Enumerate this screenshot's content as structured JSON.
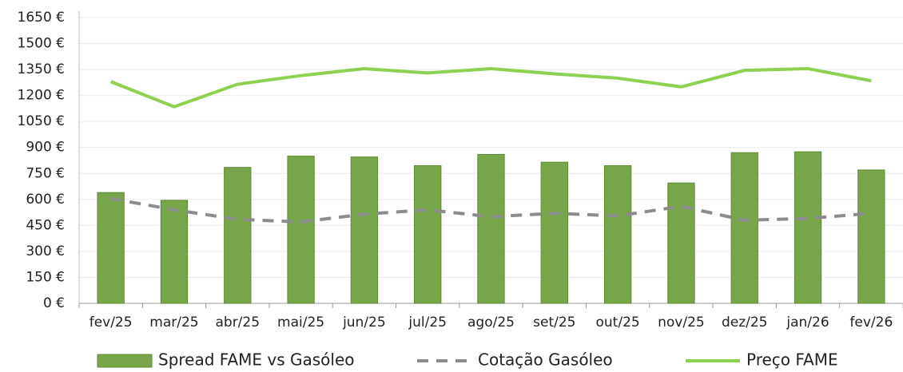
{
  "chart_data": {
    "type": "bar_line",
    "categories": [
      "fev/25",
      "mar/25",
      "abr/25",
      "mai/25",
      "jun/25",
      "jul/25",
      "ago/25",
      "set/25",
      "out/25",
      "nov/25",
      "dez/25",
      "jan/26",
      "fev/26"
    ],
    "series": [
      {
        "name": "Spread FAME vs Gasóleo",
        "type": "bar",
        "color": "#78a54a",
        "values": [
          640,
          595,
          785,
          850,
          845,
          795,
          860,
          815,
          795,
          695,
          870,
          875,
          770
        ]
      },
      {
        "name": "Cotação Gasóleo",
        "type": "line",
        "dashed": true,
        "color": "#8c8c8c",
        "values": [
          605,
          540,
          485,
          470,
          515,
          540,
          500,
          520,
          505,
          560,
          480,
          490,
          520
        ]
      },
      {
        "name": "Preço FAME",
        "type": "line",
        "dashed": false,
        "color": "#8ed04f",
        "values": [
          1280,
          1135,
          1265,
          1315,
          1355,
          1330,
          1355,
          1325,
          1300,
          1250,
          1345,
          1355,
          1285
        ]
      }
    ],
    "ylim": [
      0,
      1650
    ],
    "yticks": [
      {
        "value": 0,
        "label": "0 €"
      },
      {
        "value": 150,
        "label": "150 €"
      },
      {
        "value": 300,
        "label": "300 €"
      },
      {
        "value": 450,
        "label": "450 €"
      },
      {
        "value": 600,
        "label": "600 €"
      },
      {
        "value": 750,
        "label": "750 €"
      },
      {
        "value": 900,
        "label": "900 €"
      },
      {
        "value": 1050,
        "label": "1050 €"
      },
      {
        "value": 1200,
        "label": "1200 €"
      },
      {
        "value": 1350,
        "label": "1350 €"
      },
      {
        "value": 1500,
        "label": "1500 €"
      },
      {
        "value": 1650,
        "label": "1650 €"
      }
    ],
    "grid": true,
    "legend": "bottom"
  }
}
